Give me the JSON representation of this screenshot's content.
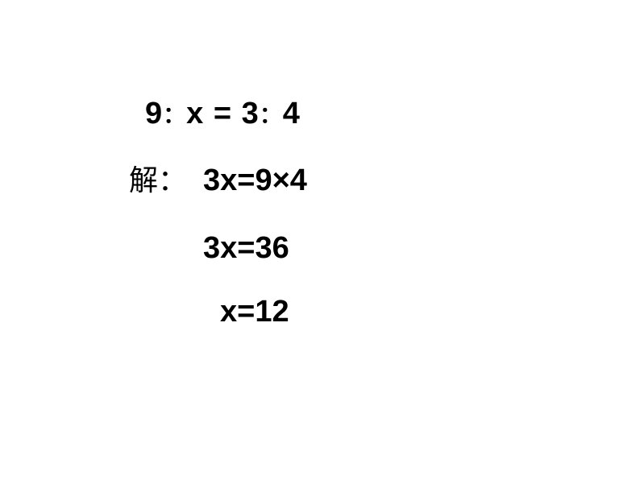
{
  "equation": {
    "line1_part1": "9",
    "line1_colon1": "：",
    "line1_part2": "x",
    "line1_equals": " = ",
    "line1_part3": " 3",
    "line1_colon2": "：",
    "line1_part4": "4",
    "solution_label": "解：",
    "line2": "3x=9×4",
    "line3": "3x=36",
    "line4": "x=12"
  },
  "styling": {
    "text_color": "#000000",
    "background_color": "#ffffff",
    "main_fontsize": 38,
    "label_fontsize": 36,
    "font_weight": "bold"
  }
}
